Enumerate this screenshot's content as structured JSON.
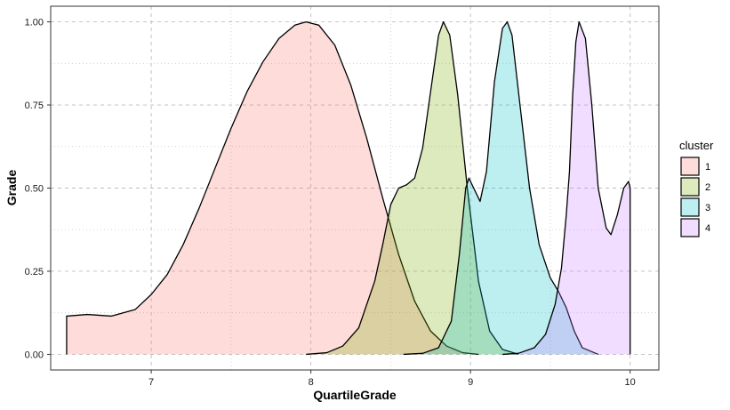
{
  "chart_data": {
    "type": "area",
    "title": "",
    "xlabel": "QuartileGrade",
    "ylabel": "Grade",
    "xlim": [
      6.37,
      10.18
    ],
    "ylim": [
      -0.047,
      1.047
    ],
    "x_ticks": [
      7,
      8,
      9,
      10
    ],
    "x_tick_labels": [
      "7",
      "8",
      "9",
      "10"
    ],
    "y_ticks": [
      0,
      0.25,
      0.5,
      0.75,
      1.0
    ],
    "y_tick_labels": [
      "0.00",
      "0.25",
      "0.50",
      "0.75",
      "1.00"
    ],
    "grid": true,
    "legend": {
      "title": "cluster",
      "position": "right"
    },
    "series": [
      {
        "name": "1",
        "color": "#F8766D",
        "points": [
          [
            6.47,
            0.115
          ],
          [
            6.6,
            0.12
          ],
          [
            6.75,
            0.115
          ],
          [
            6.9,
            0.135
          ],
          [
            7.0,
            0.18
          ],
          [
            7.1,
            0.24
          ],
          [
            7.2,
            0.33
          ],
          [
            7.3,
            0.44
          ],
          [
            7.4,
            0.56
          ],
          [
            7.5,
            0.68
          ],
          [
            7.6,
            0.79
          ],
          [
            7.7,
            0.88
          ],
          [
            7.8,
            0.95
          ],
          [
            7.9,
            0.99
          ],
          [
            7.97,
            1.0
          ],
          [
            8.05,
            0.99
          ],
          [
            8.15,
            0.93
          ],
          [
            8.25,
            0.81
          ],
          [
            8.35,
            0.65
          ],
          [
            8.45,
            0.47
          ],
          [
            8.55,
            0.3
          ],
          [
            8.65,
            0.16
          ],
          [
            8.75,
            0.07
          ],
          [
            8.85,
            0.025
          ],
          [
            8.95,
            0.005
          ],
          [
            9.05,
            0.0
          ]
        ]
      },
      {
        "name": "2",
        "color": "#7CAE00",
        "points": [
          [
            7.97,
            0.0
          ],
          [
            8.1,
            0.005
          ],
          [
            8.2,
            0.025
          ],
          [
            8.3,
            0.08
          ],
          [
            8.4,
            0.22
          ],
          [
            8.45,
            0.33
          ],
          [
            8.5,
            0.45
          ],
          [
            8.55,
            0.5
          ],
          [
            8.6,
            0.51
          ],
          [
            8.65,
            0.53
          ],
          [
            8.7,
            0.62
          ],
          [
            8.75,
            0.79
          ],
          [
            8.8,
            0.96
          ],
          [
            8.83,
            1.0
          ],
          [
            8.87,
            0.96
          ],
          [
            8.92,
            0.78
          ],
          [
            8.98,
            0.5
          ],
          [
            9.05,
            0.22
          ],
          [
            9.12,
            0.07
          ],
          [
            9.2,
            0.015
          ],
          [
            9.3,
            0.0
          ]
        ]
      },
      {
        "name": "3",
        "color": "#00BFC4",
        "points": [
          [
            8.58,
            0.0
          ],
          [
            8.7,
            0.003
          ],
          [
            8.8,
            0.02
          ],
          [
            8.88,
            0.1
          ],
          [
            8.93,
            0.3
          ],
          [
            8.97,
            0.5
          ],
          [
            8.99,
            0.53
          ],
          [
            9.02,
            0.5
          ],
          [
            9.06,
            0.46
          ],
          [
            9.1,
            0.55
          ],
          [
            9.15,
            0.82
          ],
          [
            9.2,
            0.98
          ],
          [
            9.23,
            1.0
          ],
          [
            9.26,
            0.96
          ],
          [
            9.31,
            0.75
          ],
          [
            9.37,
            0.5
          ],
          [
            9.43,
            0.33
          ],
          [
            9.5,
            0.23
          ],
          [
            9.55,
            0.19
          ],
          [
            9.6,
            0.14
          ],
          [
            9.65,
            0.07
          ],
          [
            9.7,
            0.02
          ],
          [
            9.8,
            0.0
          ]
        ]
      },
      {
        "name": "4",
        "color": "#C77CFF",
        "points": [
          [
            9.2,
            0.0
          ],
          [
            9.3,
            0.003
          ],
          [
            9.4,
            0.02
          ],
          [
            9.47,
            0.06
          ],
          [
            9.53,
            0.15
          ],
          [
            9.57,
            0.26
          ],
          [
            9.6,
            0.42
          ],
          [
            9.62,
            0.55
          ],
          [
            9.64,
            0.78
          ],
          [
            9.66,
            0.94
          ],
          [
            9.68,
            1.0
          ],
          [
            9.72,
            0.95
          ],
          [
            9.76,
            0.75
          ],
          [
            9.8,
            0.5
          ],
          [
            9.85,
            0.38
          ],
          [
            9.88,
            0.36
          ],
          [
            9.92,
            0.42
          ],
          [
            9.96,
            0.5
          ],
          [
            9.99,
            0.52
          ],
          [
            10.0,
            0.5
          ]
        ]
      }
    ]
  }
}
